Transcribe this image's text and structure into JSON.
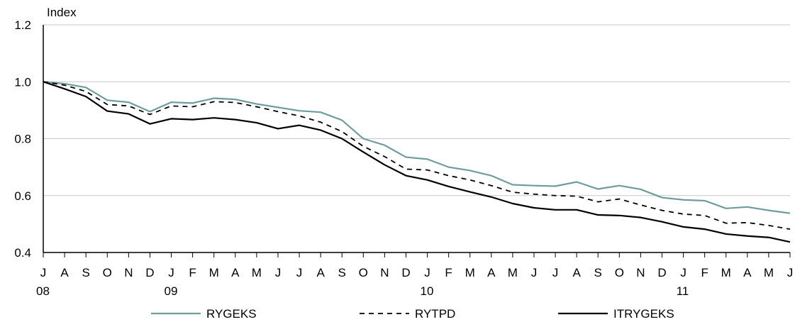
{
  "chart_data": {
    "type": "line",
    "ylabel": "Index",
    "ylim": [
      0.4,
      1.2
    ],
    "yticks": [
      "0.4",
      "0.6",
      "0.8",
      "1.0",
      "1.2"
    ],
    "grid": "horizontal",
    "legend_position": "bottom",
    "x": [
      "J",
      "A",
      "S",
      "O",
      "N",
      "D",
      "J",
      "F",
      "M",
      "A",
      "M",
      "J",
      "J",
      "A",
      "S",
      "O",
      "N",
      "D",
      "J",
      "F",
      "M",
      "A",
      "M",
      "J",
      "J",
      "A",
      "S",
      "O",
      "N",
      "D",
      "J",
      "F",
      "M",
      "A",
      "M",
      "J"
    ],
    "year_labels": [
      {
        "index": 0,
        "label": "08"
      },
      {
        "index": 6,
        "label": "09"
      },
      {
        "index": 18,
        "label": "10"
      },
      {
        "index": 30,
        "label": "11"
      }
    ],
    "series": [
      {
        "name": "RYGEKS",
        "color": "#6f9d9c",
        "dash": "solid",
        "values": [
          1.0,
          0.993,
          0.98,
          0.935,
          0.928,
          0.895,
          0.928,
          0.925,
          0.942,
          0.938,
          0.922,
          0.91,
          0.898,
          0.893,
          0.865,
          0.8,
          0.777,
          0.735,
          0.728,
          0.7,
          0.688,
          0.67,
          0.638,
          0.635,
          0.633,
          0.648,
          0.623,
          0.635,
          0.622,
          0.593,
          0.585,
          0.582,
          0.555,
          0.56,
          0.548,
          0.538
        ]
      },
      {
        "name": "RYTPD",
        "color": "#000000",
        "dash": "dashed",
        "values": [
          1.0,
          0.988,
          0.966,
          0.92,
          0.915,
          0.885,
          0.915,
          0.912,
          0.93,
          0.927,
          0.912,
          0.895,
          0.88,
          0.858,
          0.825,
          0.773,
          0.737,
          0.693,
          0.69,
          0.67,
          0.655,
          0.635,
          0.612,
          0.605,
          0.6,
          0.598,
          0.578,
          0.588,
          0.567,
          0.548,
          0.535,
          0.53,
          0.503,
          0.505,
          0.495,
          0.482
        ]
      },
      {
        "name": "ITRYGEKS",
        "color": "#000000",
        "dash": "solid",
        "values": [
          1.0,
          0.975,
          0.948,
          0.897,
          0.887,
          0.852,
          0.87,
          0.867,
          0.873,
          0.867,
          0.856,
          0.835,
          0.847,
          0.83,
          0.8,
          0.753,
          0.708,
          0.67,
          0.655,
          0.632,
          0.613,
          0.595,
          0.572,
          0.557,
          0.55,
          0.55,
          0.532,
          0.53,
          0.523,
          0.508,
          0.49,
          0.482,
          0.465,
          0.458,
          0.453,
          0.437
        ]
      }
    ]
  }
}
